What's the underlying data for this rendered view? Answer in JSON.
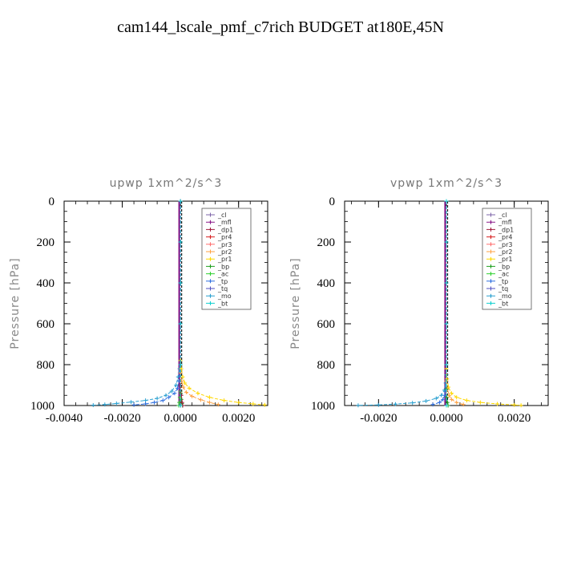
{
  "title": "cam144_lscale_pmf_c7rich  BUDGET at180E,45N",
  "colors": {
    "_cl": "#7e64a8",
    "_mfl": "#8a1a8a",
    "_dp1": "#a01c3c",
    "_pr4": "#d82020",
    "_pr3": "#ff7070",
    "_pr2": "#ffa040",
    "_pr1": "#ffd800",
    "_bp": "#20a020",
    "_ac": "#30d030",
    "_tp": "#3070e0",
    "_tq": "#5050c0",
    "_mo": "#2aa0d0",
    "_bt": "#10d0d0"
  },
  "chart_data": [
    {
      "type": "line",
      "title": "upwp   1xm^2/s^3",
      "ylabel": "Pressure  [hPa]",
      "xlim": [
        -0.004,
        0.003
      ],
      "ylim": [
        1000,
        0
      ],
      "xticks": [
        "-0.0040",
        "-0.0020",
        "0.0000",
        "0.0020"
      ],
      "xtick_values": [
        -0.004,
        -0.002,
        0.0,
        0.002
      ],
      "yticks": [
        "0",
        "200",
        "400",
        "600",
        "800",
        "1000"
      ],
      "ytick_values": [
        0,
        200,
        400,
        600,
        800,
        1000
      ],
      "legend_position": "top-right",
      "legend": [
        "_cl",
        "_mfl",
        "_dp1",
        "_pr4",
        "_pr3",
        "_pr2",
        "_pr1",
        "_bp",
        "_ac",
        "_tp",
        "_tq",
        "_mo",
        "_bt"
      ],
      "series": [
        {
          "name": "_mo",
          "x": [
            0.0,
            -3e-05,
            -8e-05,
            -0.00015,
            -0.0003,
            -0.0005,
            -0.0008,
            -0.0012,
            -0.0017,
            -0.0022,
            -0.0026,
            -0.003
          ],
          "y": [
            780,
            820,
            860,
            900,
            930,
            950,
            965,
            975,
            983,
            990,
            995,
            998
          ]
        },
        {
          "name": "_tp",
          "x": [
            0.0,
            -2e-05,
            -5e-05,
            -0.0001,
            -0.0002,
            -0.0004,
            -0.0006,
            -0.0009,
            -0.0012,
            -0.0016
          ],
          "y": [
            800,
            840,
            880,
            915,
            940,
            960,
            975,
            985,
            992,
            997
          ]
        },
        {
          "name": "_pr1",
          "x": [
            0.0,
            3e-05,
            8e-05,
            0.00015,
            0.0003,
            0.0006,
            0.001,
            0.0015,
            0.002,
            0.0025,
            0.0029
          ],
          "y": [
            780,
            820,
            860,
            890,
            915,
            940,
            960,
            975,
            985,
            992,
            997
          ]
        },
        {
          "name": "_pr2",
          "x": [
            0.0,
            4e-05,
            0.0001,
            0.0002,
            0.0004,
            0.0007,
            0.001,
            0.0013
          ],
          "y": [
            840,
            880,
            910,
            935,
            955,
            972,
            985,
            995
          ]
        },
        {
          "name": "_bp",
          "x": [
            0.0,
            1e-05,
            3e-05,
            5e-05,
            7e-05
          ],
          "y": [
            900,
            940,
            970,
            990,
            1000
          ]
        },
        {
          "name": "_ac",
          "x": [
            0.0,
            -2e-05,
            -4e-05,
            -6e-05
          ],
          "y": [
            930,
            960,
            985,
            1000
          ]
        },
        {
          "name": "_dp1",
          "x": [
            0.0,
            3e-05,
            6e-05,
            8e-05
          ],
          "y": [
            900,
            950,
            985,
            1000
          ]
        },
        {
          "name": "_cl",
          "x": [
            0.0,
            0.0,
            0.0,
            0.0,
            0.0,
            0.0
          ],
          "y": [
            0,
            200,
            400,
            600,
            800,
            1000
          ]
        },
        {
          "name": "_mfl",
          "x": [
            0.0,
            0.0,
            0.0,
            0.0,
            0.0,
            0.0
          ],
          "y": [
            0,
            200,
            400,
            600,
            800,
            1000
          ]
        },
        {
          "name": "_bt",
          "x": [
            0.0,
            0.0,
            0.0,
            0.0,
            0.0,
            0.0
          ],
          "y": [
            0,
            200,
            400,
            600,
            800,
            1000
          ]
        }
      ]
    },
    {
      "type": "line",
      "title": "vpwp   1xm^2/s^3",
      "ylabel": "Pressure  [hPa]",
      "xlim": [
        -0.003,
        0.003
      ],
      "ylim": [
        1000,
        0
      ],
      "xticks": [
        "-0.0020",
        "0.0000",
        "0.0020"
      ],
      "xtick_values": [
        -0.002,
        0.0,
        0.002
      ],
      "yticks": [
        "0",
        "200",
        "400",
        "600",
        "800",
        "1000"
      ],
      "ytick_values": [
        0,
        200,
        400,
        600,
        800,
        1000
      ],
      "legend_position": "top-right",
      "legend": [
        "_cl",
        "_mfl",
        "_dp1",
        "_pr4",
        "_pr3",
        "_pr2",
        "_pr1",
        "_bp",
        "_ac",
        "_tp",
        "_tq",
        "_mo",
        "_bt"
      ],
      "series": [
        {
          "name": "_mo",
          "x": [
            0.0,
            -2e-05,
            -6e-05,
            -0.00015,
            -0.0003,
            -0.0006,
            -0.001,
            -0.0015,
            -0.002,
            -0.0026
          ],
          "y": [
            850,
            890,
            925,
            950,
            965,
            978,
            987,
            993,
            997,
            999
          ]
        },
        {
          "name": "_tp",
          "x": [
            0.0,
            -2e-05,
            -5e-05,
            -0.0001,
            -0.0002,
            -0.0004
          ],
          "y": [
            880,
            920,
            950,
            970,
            985,
            995
          ]
        },
        {
          "name": "_pr1",
          "x": [
            0.0,
            2e-05,
            6e-05,
            0.00015,
            0.0003,
            0.0006,
            0.001,
            0.0015,
            0.002,
            0.0022
          ],
          "y": [
            820,
            870,
            910,
            940,
            960,
            975,
            985,
            992,
            997,
            999
          ]
        },
        {
          "name": "_pr2",
          "x": [
            0.0,
            3e-05,
            8e-05,
            0.00015,
            0.0003,
            0.0005
          ],
          "y": [
            880,
            920,
            950,
            970,
            985,
            995
          ]
        },
        {
          "name": "_bp",
          "x": [
            0.0,
            1e-05,
            3e-05,
            5e-05
          ],
          "y": [
            920,
            960,
            985,
            1000
          ]
        },
        {
          "name": "_cl",
          "x": [
            0.0,
            0.0,
            0.0,
            0.0,
            0.0,
            0.0
          ],
          "y": [
            0,
            200,
            400,
            600,
            800,
            1000
          ]
        },
        {
          "name": "_mfl",
          "x": [
            0.0,
            0.0,
            0.0,
            0.0,
            0.0,
            0.0
          ],
          "y": [
            0,
            200,
            400,
            600,
            800,
            1000
          ]
        },
        {
          "name": "_bt",
          "x": [
            0.0,
            0.0,
            0.0,
            0.0,
            0.0,
            0.0
          ],
          "y": [
            0,
            200,
            400,
            600,
            800,
            1000
          ]
        }
      ]
    }
  ]
}
